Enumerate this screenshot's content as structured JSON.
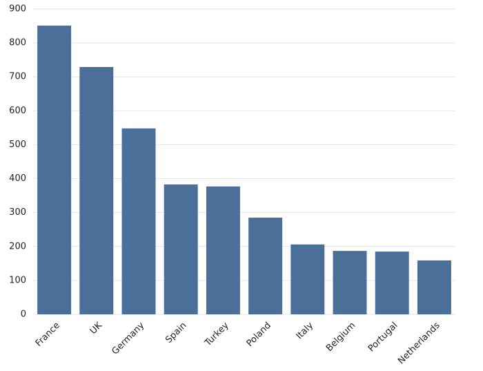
{
  "chart_data": {
    "type": "bar",
    "categories": [
      "France",
      "UK",
      "Germany",
      "Spain",
      "Turkey",
      "Poland",
      "Italy",
      "Belgium",
      "Portugal",
      "Netherlands"
    ],
    "values": [
      851,
      729,
      548,
      383,
      377,
      285,
      206,
      187,
      185,
      159
    ],
    "color": "#4a6f98",
    "ylim": [
      0,
      900
    ],
    "yticks": [
      0,
      100,
      200,
      300,
      400,
      500,
      600,
      700,
      800,
      900
    ],
    "grid": true
  }
}
